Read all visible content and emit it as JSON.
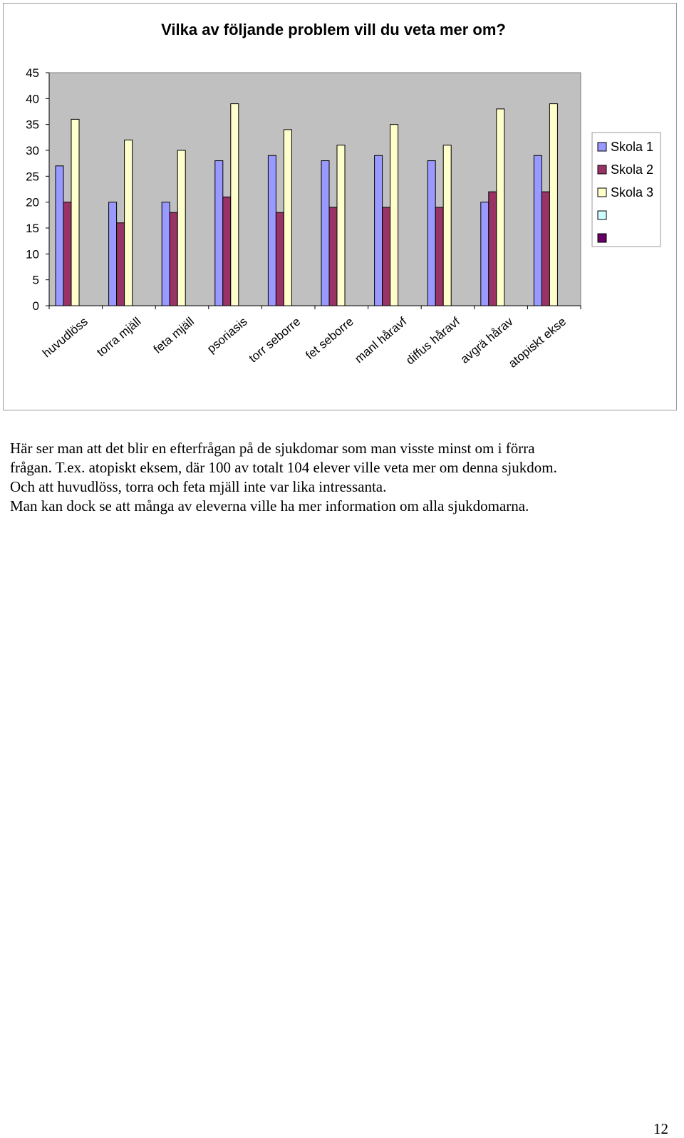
{
  "chart_data": {
    "type": "bar",
    "title": "Vilka av följande problem vill du veta mer om?",
    "categories": [
      "huvudlöss",
      "torra mjäll",
      "feta mjäll",
      "psoriasis",
      "torr seborre",
      "fet seborre",
      "manl håravf",
      "diffus håravf",
      "avgrä hårav",
      "atopiskt ekse"
    ],
    "series": [
      {
        "name": "Skola 1",
        "color": "#9999ff",
        "values": [
          27,
          20,
          20,
          28,
          29,
          28,
          29,
          28,
          20,
          29
        ]
      },
      {
        "name": "Skola 2",
        "color": "#993366",
        "values": [
          20,
          16,
          18,
          21,
          18,
          19,
          19,
          19,
          22,
          22
        ]
      },
      {
        "name": "Skola 3",
        "color": "#ffffcc",
        "values": [
          36,
          32,
          30,
          39,
          34,
          31,
          35,
          31,
          38,
          39
        ]
      }
    ],
    "legend_extra_swatches": [
      {
        "color": "#ccffff"
      },
      {
        "color": "#660066"
      }
    ],
    "ylim": [
      0,
      45
    ],
    "yticks": [
      "0",
      "5",
      "10",
      "15",
      "20",
      "25",
      "30",
      "35",
      "40",
      "45"
    ],
    "xlabel": "",
    "ylabel": "",
    "grid": false,
    "plot_background": "#c0c0c0",
    "legend_position": "right"
  },
  "body_text": [
    "Här ser man att det blir en efterfrågan på de sjukdomar som man visste minst om i förra",
    "frågan. T.ex. atopiskt eksem, där 100 av totalt 104 elever  ville veta mer om denna sjukdom.",
    "Och att huvudlöss, torra och feta mjäll inte var lika intressanta.",
    "Man kan dock se att många av eleverna ville ha mer information om alla sjukdomarna."
  ],
  "page_number": "12"
}
